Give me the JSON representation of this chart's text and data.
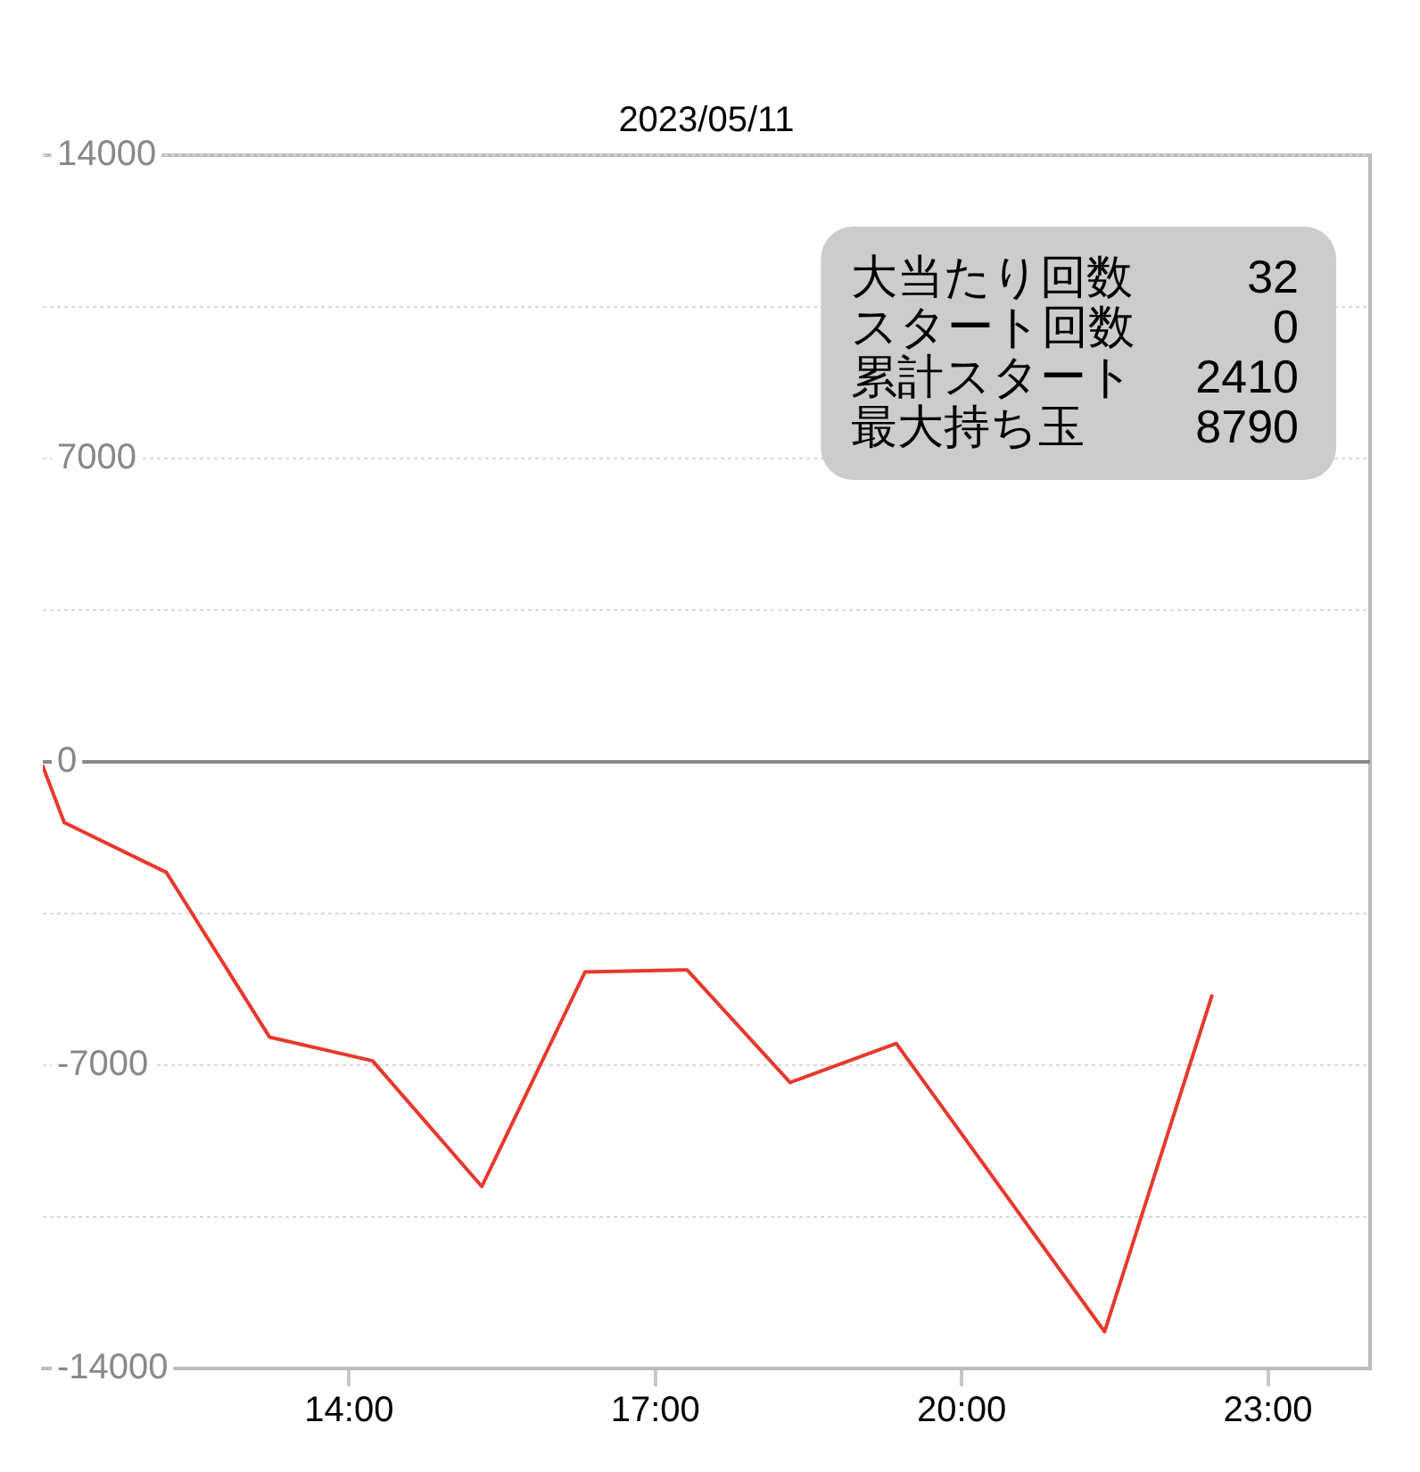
{
  "chart_data": {
    "type": "line",
    "title": "2023/05/11",
    "x": [
      11.0,
      11.21,
      12.21,
      13.22,
      14.23,
      15.3,
      16.31,
      17.31,
      18.32,
      19.36,
      21.4,
      22.45
    ],
    "series": [
      {
        "color": "#e8382d",
        "values": [
          -100,
          -1400,
          -2550,
          -6350,
          -6900,
          -9800,
          -4850,
          -4800,
          -7400,
          -6500,
          -13150,
          -5400
        ]
      }
    ],
    "xlim": [
      11,
      24
    ],
    "xticks": [
      {
        "value": 14,
        "label": "14:00"
      },
      {
        "value": 17,
        "label": "17:00"
      },
      {
        "value": 20,
        "label": "20:00"
      },
      {
        "value": 23,
        "label": "23:00"
      }
    ],
    "ylim": [
      -14000,
      14000
    ],
    "yticks": [
      14000,
      {
        "value": 10500,
        "label": null
      },
      7000,
      {
        "value": 3500,
        "label": null
      },
      0,
      {
        "value": -3500,
        "label": null
      },
      -7000,
      {
        "value": -10500,
        "label": null
      },
      -14000
    ],
    "grid": "y",
    "marker": "none",
    "line_style": "solid",
    "ref_lines": [
      {
        "axis": "y",
        "value": 0,
        "color": "#888888"
      }
    ],
    "annotations": [
      "大当たり回数",
      "32",
      "スタート回数",
      "0",
      "累計スタート",
      "2410",
      "最大持ち玉",
      "8790"
    ]
  }
}
